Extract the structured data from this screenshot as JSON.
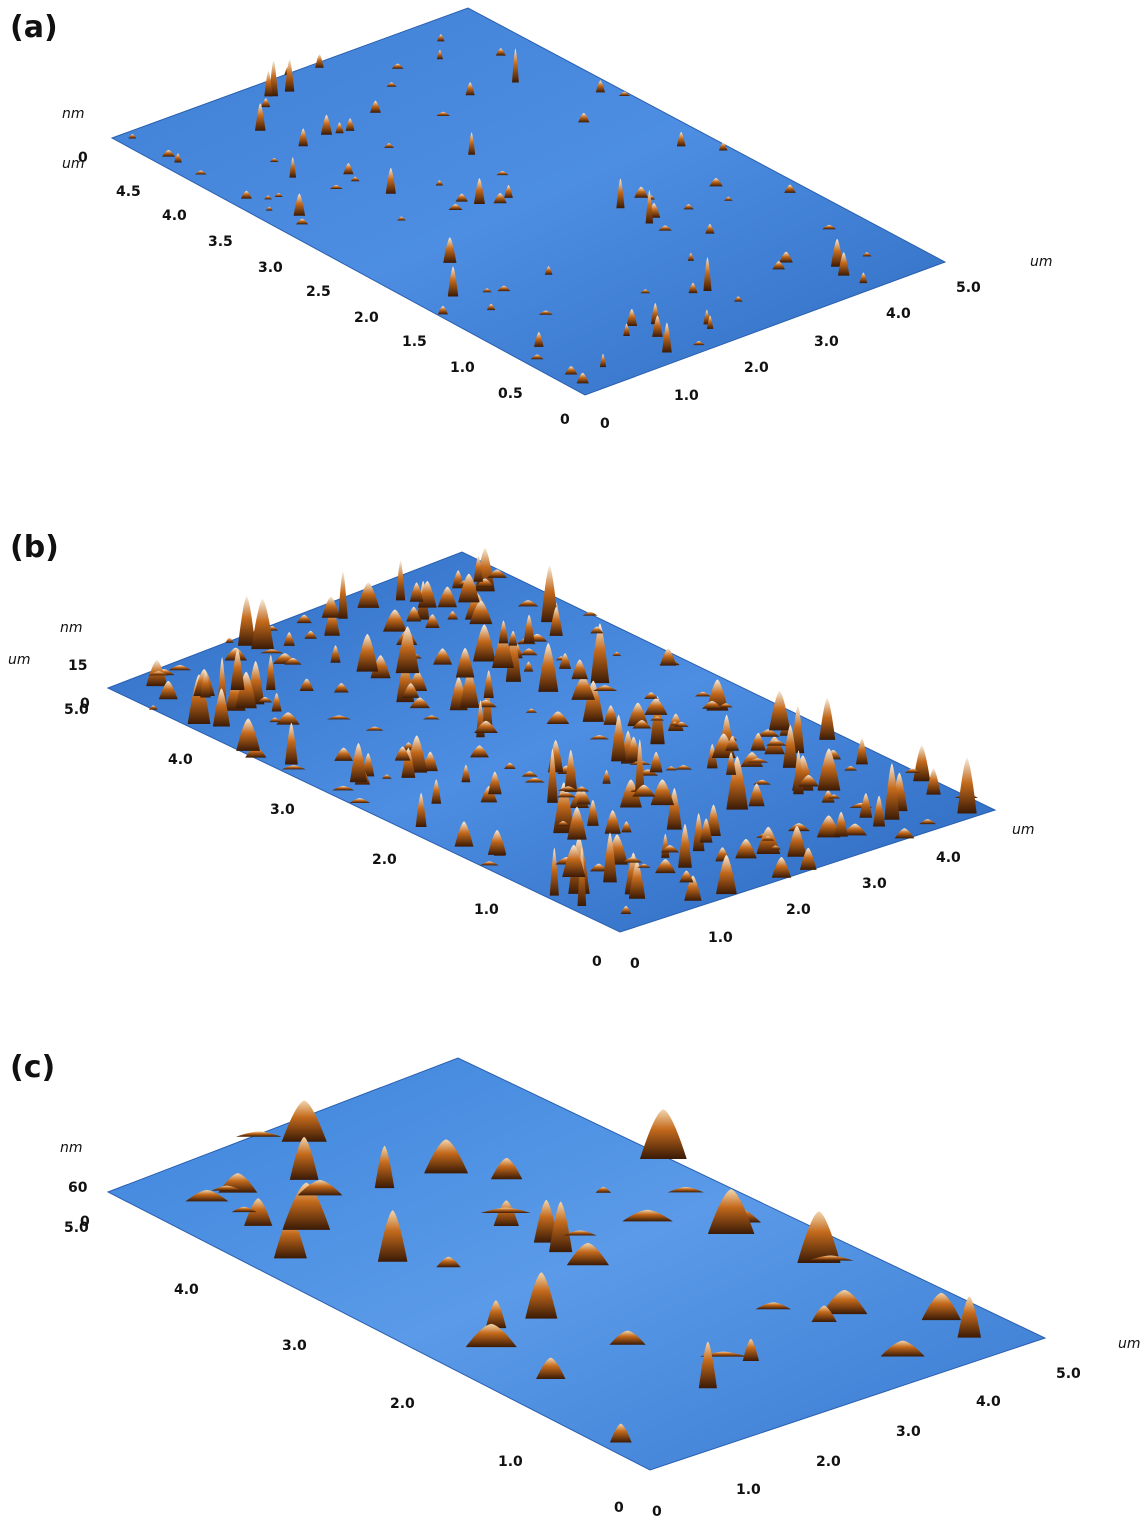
{
  "panels": [
    {
      "id": "a",
      "label": "(a)",
      "z_unit": "nm",
      "z_ticks": [
        "0"
      ],
      "left_axis_unit": "um",
      "left_ticks": [
        "4.5",
        "4.0",
        "3.5",
        "3.0",
        "2.5",
        "2.0",
        "1.5",
        "1.0",
        "0.5",
        "0"
      ],
      "right_axis_unit": "um",
      "right_ticks": [
        "0",
        "1.0",
        "2.0",
        "3.0",
        "4.0",
        "5.0"
      ]
    },
    {
      "id": "b",
      "label": "(b)",
      "z_unit": "nm",
      "z_ticks": [
        "15",
        "0"
      ],
      "left_axis_unit": "um",
      "left_ticks": [
        "5.0",
        "4.0",
        "3.0",
        "2.0",
        "1.0",
        "0"
      ],
      "right_axis_unit": "um",
      "right_ticks": [
        "0",
        "1.0",
        "2.0",
        "3.0",
        "4.0"
      ]
    },
    {
      "id": "c",
      "label": "(c)",
      "z_unit": "nm",
      "z_ticks": [
        "60",
        "0"
      ],
      "left_ticks": [
        "5.0",
        "4.0",
        "3.0",
        "2.0",
        "1.0",
        "0"
      ],
      "right_axis_unit": "um",
      "right_ticks": [
        "0",
        "1.0",
        "2.0",
        "3.0",
        "4.0",
        "5.0"
      ]
    }
  ],
  "colors": {
    "surface_light": "#4f8fe0",
    "surface_dark": "#1f5bb0",
    "peak_base": "#3a1a06",
    "peak_mid": "#c46a1c",
    "peak_top": "#f7efe0"
  }
}
